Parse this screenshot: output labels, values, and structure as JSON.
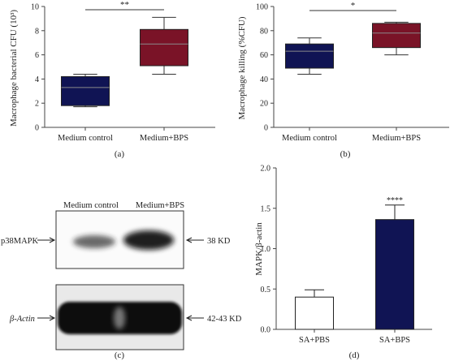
{
  "colors": {
    "navy": "#101454",
    "maroon": "#7a1327",
    "white": "#ffffff",
    "axis": "#444444"
  },
  "panels": {
    "a": {
      "label": "(a)"
    },
    "b": {
      "label": "(b)"
    },
    "c": {
      "label": "(c)"
    },
    "d": {
      "label": "(d)"
    }
  },
  "blot": {
    "columns": [
      "Medium control",
      "Medium+BPS"
    ],
    "rows": [
      {
        "protein": "p38MAPK",
        "size": "38 KD"
      },
      {
        "protein": "β-Actin",
        "size": "42-43 KD"
      }
    ]
  },
  "chart_data": [
    {
      "type": "box",
      "panel": "a",
      "ylabel": "Macrophage bacterial CFU (10³)",
      "ylim": [
        0,
        10
      ],
      "yticks": [
        0,
        2,
        4,
        6,
        8,
        10
      ],
      "categories": [
        "Medium control",
        "Medium+BPS"
      ],
      "boxes": [
        {
          "category": "Medium control",
          "min": 1.7,
          "q1": 1.8,
          "median": 3.3,
          "q3": 4.2,
          "max": 4.4,
          "color": "#101454"
        },
        {
          "category": "Medium+BPS",
          "min": 4.4,
          "q1": 5.1,
          "median": 6.9,
          "q3": 8.1,
          "max": 9.1,
          "color": "#7a1327"
        }
      ],
      "significance": "**",
      "grid": false
    },
    {
      "type": "box",
      "panel": "b",
      "ylabel": "Macrophage killing (%CFU)",
      "ylim": [
        0,
        100
      ],
      "yticks": [
        0,
        20,
        40,
        60,
        80,
        100
      ],
      "categories": [
        "Medium control",
        "Medium+BPS"
      ],
      "boxes": [
        {
          "category": "Medium control",
          "min": 44,
          "q1": 49,
          "median": 63,
          "q3": 69,
          "max": 74,
          "color": "#101454"
        },
        {
          "category": "Medium+BPS",
          "min": 60,
          "q1": 66,
          "median": 78,
          "q3": 86,
          "max": 87,
          "color": "#7a1327"
        }
      ],
      "significance": "*",
      "grid": false
    },
    {
      "type": "bar",
      "panel": "d",
      "ylabel": "MAPK/β-actin",
      "ylim": [
        0,
        2.0
      ],
      "yticks": [
        "0.0",
        "0.5",
        "1.0",
        "1.5",
        "2.0"
      ],
      "categories": [
        "SA+PBS",
        "SA+BPS"
      ],
      "values": [
        0.4,
        1.36
      ],
      "errors": [
        0.09,
        0.18
      ],
      "colors": [
        "#ffffff",
        "#101454"
      ],
      "significance": "****",
      "grid": false
    }
  ]
}
